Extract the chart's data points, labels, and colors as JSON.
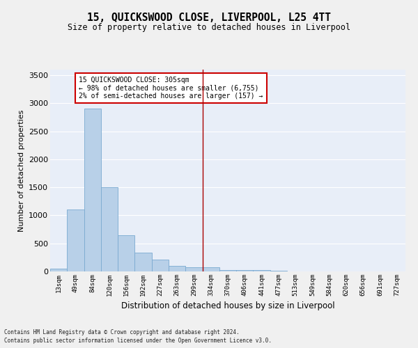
{
  "title": "15, QUICKSWOOD CLOSE, LIVERPOOL, L25 4TT",
  "subtitle": "Size of property relative to detached houses in Liverpool",
  "xlabel": "Distribution of detached houses by size in Liverpool",
  "ylabel": "Number of detached properties",
  "categories": [
    "13sqm",
    "49sqm",
    "84sqm",
    "120sqm",
    "156sqm",
    "192sqm",
    "227sqm",
    "263sqm",
    "299sqm",
    "334sqm",
    "370sqm",
    "406sqm",
    "441sqm",
    "477sqm",
    "513sqm",
    "549sqm",
    "584sqm",
    "620sqm",
    "656sqm",
    "691sqm",
    "727sqm"
  ],
  "values": [
    50,
    1100,
    2900,
    1500,
    640,
    330,
    210,
    95,
    80,
    75,
    30,
    30,
    25,
    15,
    0,
    0,
    0,
    0,
    0,
    0,
    0
  ],
  "bar_color": "#b8d0e8",
  "bar_edge_color": "#7aaad0",
  "background_color": "#e8eef8",
  "grid_color": "#ffffff",
  "vline_x": 8.5,
  "vline_color": "#aa0000",
  "annotation_text": "15 QUICKSWOOD CLOSE: 305sqm\n← 98% of detached houses are smaller (6,755)\n2% of semi-detached houses are larger (157) →",
  "annotation_box_facecolor": "#ffffff",
  "annotation_box_edge": "#cc0000",
  "ylim": [
    0,
    3600
  ],
  "yticks": [
    0,
    500,
    1000,
    1500,
    2000,
    2500,
    3000,
    3500
  ],
  "footer1": "Contains HM Land Registry data © Crown copyright and database right 2024.",
  "footer2": "Contains public sector information licensed under the Open Government Licence v3.0."
}
